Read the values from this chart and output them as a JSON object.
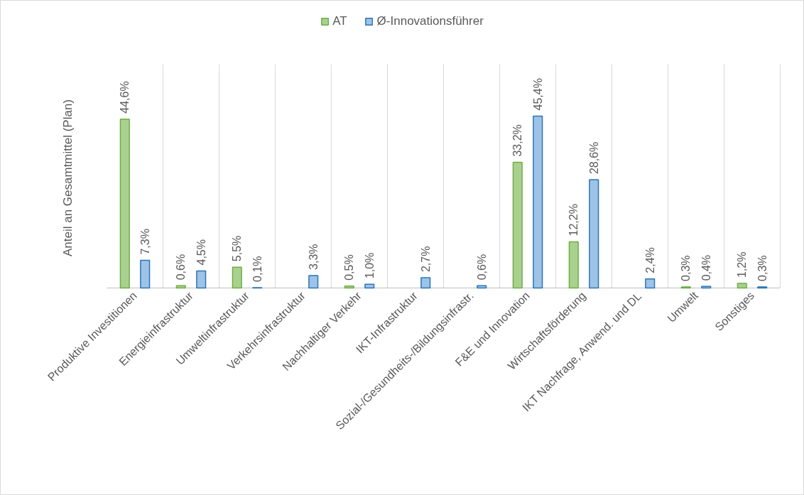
{
  "chart_data": {
    "type": "bar",
    "ylabel": "Anteil an Gesamtmittel (Plan)",
    "categories": [
      "Produktive Investitionen",
      "Energieinfrastruktur",
      "Umweltinfrastruktur",
      "Verkehrsinfrastruktur",
      "Nachhaltiger Verkehr",
      "IKT-Infrastruktur",
      "Sozial-/Gesundheits-/Bildungsinfrastr.",
      "F&E und Innovation",
      "Wirtschaftsförderung",
      "IKT Nachfrage, Anwend. und DL",
      "Umwelt",
      "Sonstiges"
    ],
    "series": [
      {
        "name": "AT",
        "color": "#a9d18e",
        "values": [
          44.6,
          0.6,
          5.5,
          null,
          0.5,
          null,
          null,
          33.2,
          12.2,
          null,
          0.3,
          1.2
        ],
        "value_labels": [
          "44,6%",
          "0,6%",
          "5,5%",
          null,
          "0,5%",
          null,
          null,
          "33,2%",
          "12,2%",
          null,
          "0,3%",
          "1,2%"
        ]
      },
      {
        "name": "Ø-Innovationsführer",
        "color": "#9dc3e6",
        "values": [
          7.3,
          4.5,
          0.1,
          3.3,
          1.0,
          2.7,
          0.6,
          45.4,
          28.6,
          2.4,
          0.4,
          0.3
        ],
        "value_labels": [
          "7,3%",
          "4,5%",
          "0,1%",
          "3,3%",
          "1,0%",
          "2,7%",
          "0,6%",
          "45,4%",
          "28,6%",
          "2,4%",
          "0,4%",
          "0,3%"
        ]
      }
    ],
    "grid": "x",
    "legend": "top"
  }
}
